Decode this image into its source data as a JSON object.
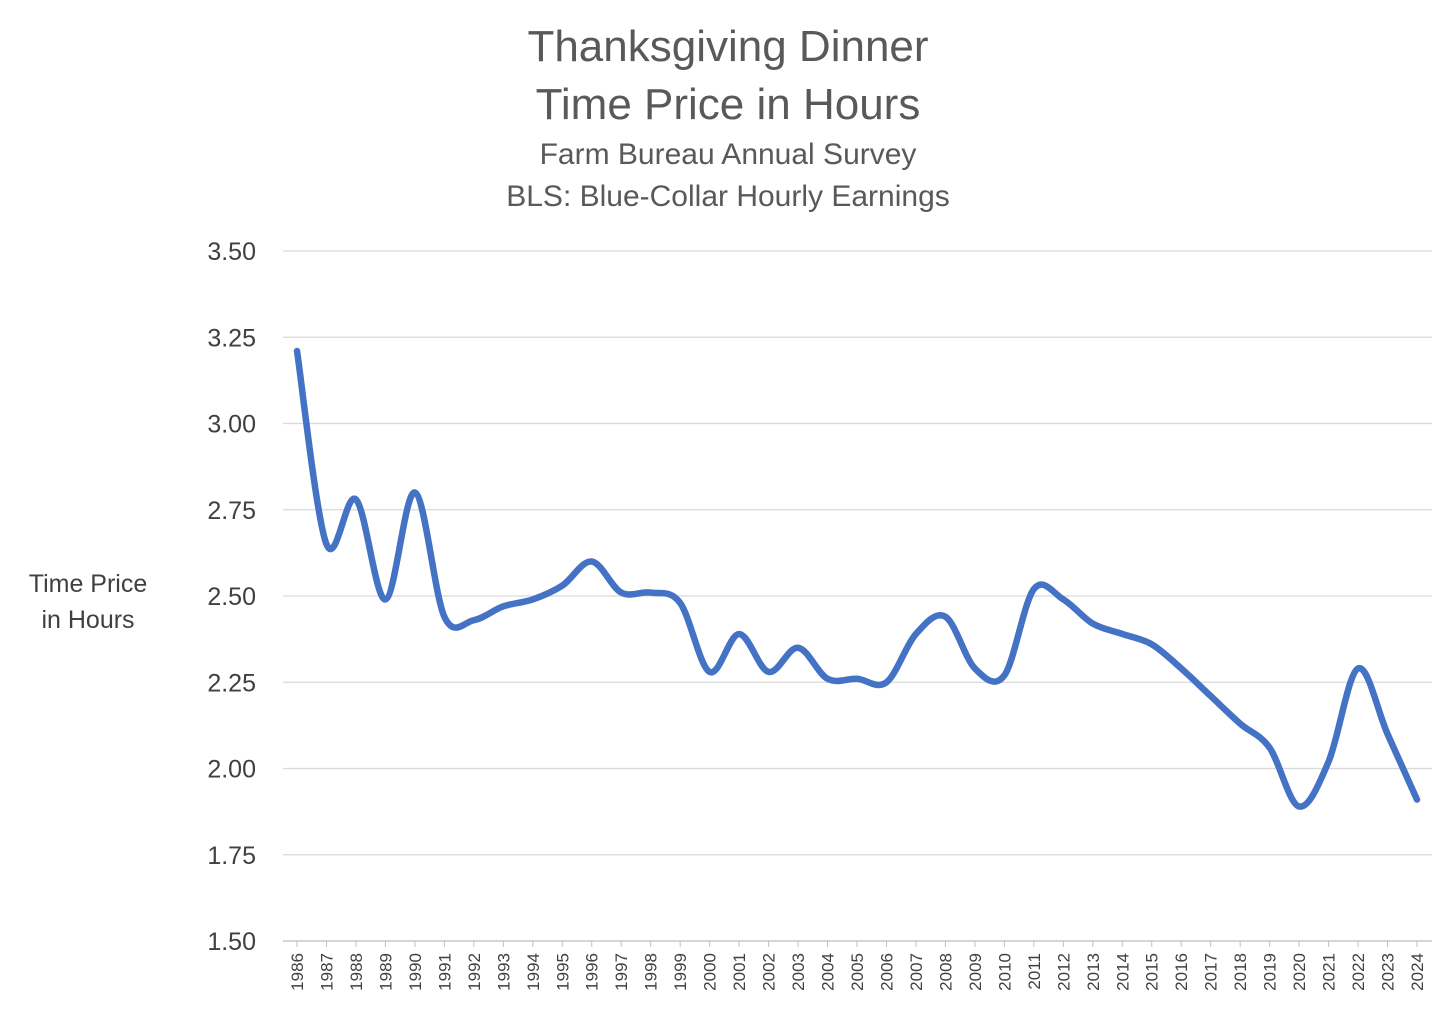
{
  "chart_data": {
    "type": "line",
    "title_lines": [
      "Thanksgiving Dinner",
      "Time Price in Hours"
    ],
    "subtitle_lines": [
      "Farm Bureau Annual Survey",
      "BLS: Blue-Collar Hourly Earnings"
    ],
    "ylabel_lines": [
      "Time Price",
      "in Hours"
    ],
    "xlabel": "",
    "ylim": [
      1.5,
      3.5
    ],
    "yticks": [
      "1.50",
      "1.75",
      "2.00",
      "2.25",
      "2.50",
      "2.75",
      "3.00",
      "3.25",
      "3.50"
    ],
    "grid": "horizontal",
    "legend": "none",
    "x": [
      "1986",
      "1987",
      "1988",
      "1989",
      "1990",
      "1991",
      "1992",
      "1993",
      "1994",
      "1995",
      "1996",
      "1997",
      "1998",
      "1999",
      "2000",
      "2001",
      "2002",
      "2003",
      "2004",
      "2005",
      "2006",
      "2007",
      "2008",
      "2009",
      "2010",
      "2011",
      "2012",
      "2013",
      "2014",
      "2015",
      "2016",
      "2017",
      "2018",
      "2019",
      "2020",
      "2021",
      "2022",
      "2023",
      "2024"
    ],
    "series": [
      {
        "color": "#4472C4",
        "values": [
          3.21,
          2.65,
          2.78,
          2.49,
          2.8,
          2.44,
          2.43,
          2.47,
          2.49,
          2.53,
          2.6,
          2.51,
          2.51,
          2.48,
          2.28,
          2.39,
          2.28,
          2.35,
          2.26,
          2.26,
          2.25,
          2.39,
          2.44,
          2.29,
          2.27,
          2.52,
          2.49,
          2.42,
          2.39,
          2.36,
          2.29,
          2.21,
          2.13,
          2.06,
          1.89,
          2.02,
          2.29,
          2.1,
          1.91
        ]
      }
    ]
  }
}
